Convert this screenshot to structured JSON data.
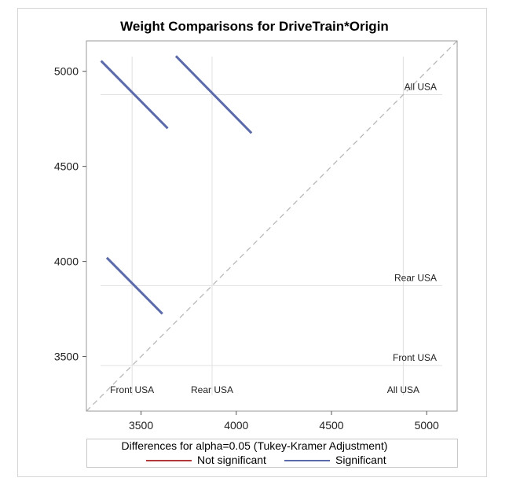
{
  "chart_data": {
    "type": "line",
    "title": "Weight Comparisons for DriveTrain*Origin",
    "xlim": [
      3213,
      5160
    ],
    "ylim": [
      3213,
      5160
    ],
    "xticks": [
      3500,
      4000,
      4500,
      5000
    ],
    "yticks": [
      3500,
      4000,
      4500,
      5000
    ],
    "groups": [
      {
        "label": "Front USA",
        "mean": 3453
      },
      {
        "label": "Rear USA",
        "mean": 3873
      },
      {
        "label": "All USA",
        "mean": 4877
      }
    ],
    "series": [
      {
        "name": "Significant",
        "color": "#5b6aaa",
        "segments": [
          {
            "x": [
              3290,
              3640
            ],
            "y": [
              5055,
              4700
            ]
          },
          {
            "x": [
              3683,
              4080
            ],
            "y": [
              5080,
              4675
            ]
          },
          {
            "x": [
              3320,
              3612
            ],
            "y": [
              4020,
              3725
            ]
          }
        ]
      },
      {
        "name": "Not significant",
        "color": "#b03a3a",
        "segments": []
      }
    ],
    "diagonal": true,
    "legend": {
      "title": "Differences for alpha=0.05 (Tukey-Kramer Adjustment)",
      "position": "bottom"
    }
  }
}
